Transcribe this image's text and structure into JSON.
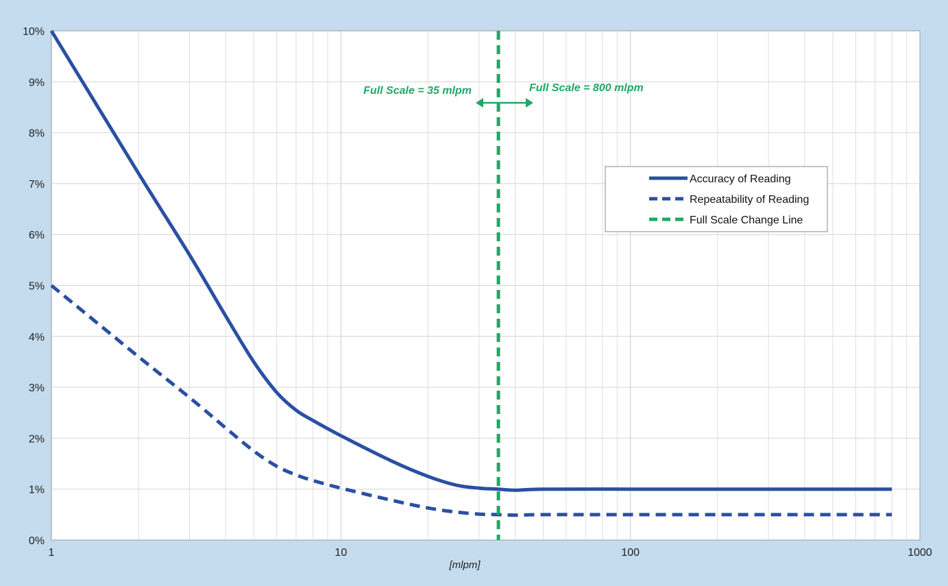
{
  "chart_data": {
    "type": "line",
    "x_scale": "log",
    "xlim": [
      1,
      1000
    ],
    "ylim": [
      0,
      10
    ],
    "x_ticks": [
      {
        "value": 1,
        "label": "1"
      },
      {
        "value": 10,
        "label": "10"
      },
      {
        "value": 100,
        "label": "100"
      },
      {
        "value": 1000,
        "label": "1000"
      }
    ],
    "y_ticks": [
      {
        "value": 0,
        "label": "0%"
      },
      {
        "value": 1,
        "label": "1%"
      },
      {
        "value": 2,
        "label": "2%"
      },
      {
        "value": 3,
        "label": "3%"
      },
      {
        "value": 4,
        "label": "4%"
      },
      {
        "value": 5,
        "label": "5%"
      },
      {
        "value": 6,
        "label": "6%"
      },
      {
        "value": 7,
        "label": "7%"
      },
      {
        "value": 8,
        "label": "8%"
      },
      {
        "value": 9,
        "label": "9%"
      },
      {
        "value": 10,
        "label": "10%"
      }
    ],
    "xlabel": "[mlpm]",
    "ylabel": "",
    "grid": true,
    "legend_position": "right",
    "series": [
      {
        "name": "Accuracy of Reading",
        "style": "solid",
        "color": "#2a4fa3",
        "x": [
          1,
          2,
          3,
          4,
          5,
          6,
          7,
          8,
          10,
          15,
          20,
          25,
          30,
          35,
          40,
          50,
          100,
          200,
          400,
          800
        ],
        "y": [
          10,
          7.2,
          5.6,
          4.4,
          3.5,
          2.9,
          2.55,
          2.35,
          2.05,
          1.55,
          1.25,
          1.08,
          1.02,
          1.0,
          0.98,
          1.0,
          1.0,
          1.0,
          1.0,
          1.0
        ]
      },
      {
        "name": "Repeatability of Reading",
        "style": "dashed",
        "color": "#2a4fa3",
        "x": [
          1,
          2,
          3,
          4,
          5,
          6,
          7,
          8,
          10,
          15,
          20,
          25,
          30,
          35,
          40,
          50,
          100,
          200,
          400,
          800
        ],
        "y": [
          5,
          3.6,
          2.8,
          2.2,
          1.75,
          1.45,
          1.28,
          1.17,
          1.02,
          0.78,
          0.63,
          0.55,
          0.51,
          0.5,
          0.49,
          0.5,
          0.5,
          0.5,
          0.5,
          0.5
        ]
      },
      {
        "name": "Full Scale Change Line",
        "style": "dashed",
        "color": "#1ea866",
        "vertical_at_x": 35
      }
    ],
    "annotations": [
      {
        "text": "Full Scale = 35 mlpm",
        "side": "left"
      },
      {
        "text": "Full Scale = 800 mlpm",
        "side": "right"
      }
    ]
  }
}
